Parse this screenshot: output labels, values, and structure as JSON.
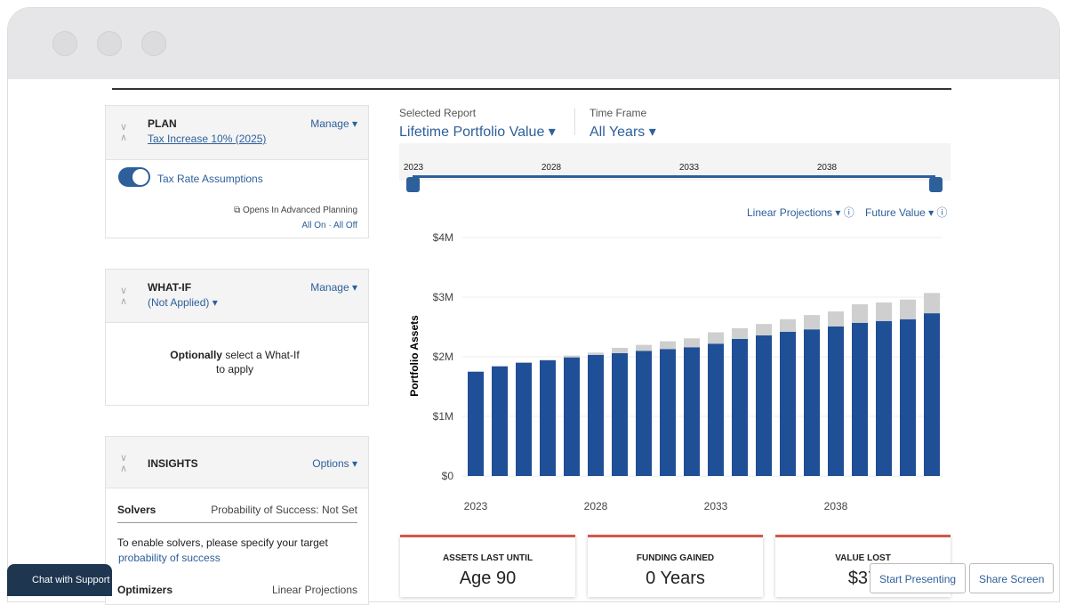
{
  "plan": {
    "title": "PLAN",
    "manage": "Manage",
    "link": "Tax Increase 10% (2025)",
    "toggle": "Tax Rate Assumptions",
    "note": "Opens In Advanced Planning",
    "all_on": "All On",
    "all_off": "All Off"
  },
  "whatif": {
    "title": "WHAT-IF",
    "manage": "Manage",
    "status": "(Not Applied)",
    "message_bold": "Optionally",
    "message": "select a What-If to apply"
  },
  "insights": {
    "title": "INSIGHTS",
    "options": "Options",
    "solvers": "Solvers",
    "probability": "Probability of Success: Not Set",
    "enable": "To enable solvers, please specify your target",
    "enable_link": "probability of success",
    "optimizers": "Optimizers",
    "projections": "Linear Projections"
  },
  "report": {
    "label": "Selected Report",
    "value": "Lifetime Portfolio Value",
    "timeframe_label": "Time Frame",
    "timeframe": "All Years"
  },
  "timeline": {
    "labels": [
      "2023",
      "2028",
      "2033",
      "2038"
    ]
  },
  "controls": {
    "projection": "Linear Projections",
    "value_mode": "Future Value"
  },
  "chart_data": {
    "type": "bar",
    "stacked": true,
    "y_label": "Portfolio Assets",
    "categories": [
      "2023",
      null,
      null,
      null,
      null,
      "2028",
      null,
      null,
      null,
      null,
      "2033",
      null,
      null,
      null,
      null,
      "2038",
      null,
      null,
      null,
      null
    ],
    "series": [
      {
        "color": "#1f4f96",
        "values": [
          1750000,
          1840000,
          1900000,
          1940000,
          1990000,
          2030000,
          2060000,
          2100000,
          2130000,
          2160000,
          2220000,
          2300000,
          2360000,
          2420000,
          2460000,
          2510000,
          2570000,
          2600000,
          2630000,
          2730000
        ]
      },
      {
        "color": "#cfcfcf",
        "values": [
          0,
          0,
          10000,
          10000,
          30000,
          40000,
          90000,
          100000,
          130000,
          150000,
          190000,
          180000,
          190000,
          210000,
          240000,
          250000,
          310000,
          310000,
          330000,
          340000
        ]
      }
    ],
    "ylim": [
      0,
      4000000
    ],
    "yticks": [
      {
        "value": 0,
        "label": "$0"
      },
      {
        "value": 1000000,
        "label": "$1M"
      },
      {
        "value": 2000000,
        "label": "$2M"
      },
      {
        "value": 3000000,
        "label": "$3M"
      },
      {
        "value": 4000000,
        "label": "$4M"
      }
    ],
    "grid": true
  },
  "cards": [
    {
      "label": "ASSETS LAST UNTIL",
      "value": "Age 90"
    },
    {
      "label": "FUNDING GAINED",
      "value": "0 Years"
    },
    {
      "label": "VALUE LOST",
      "value": "$37"
    }
  ],
  "buttons": {
    "present": "Start Presenting",
    "share": "Share Screen",
    "chat": "Chat with Support"
  }
}
